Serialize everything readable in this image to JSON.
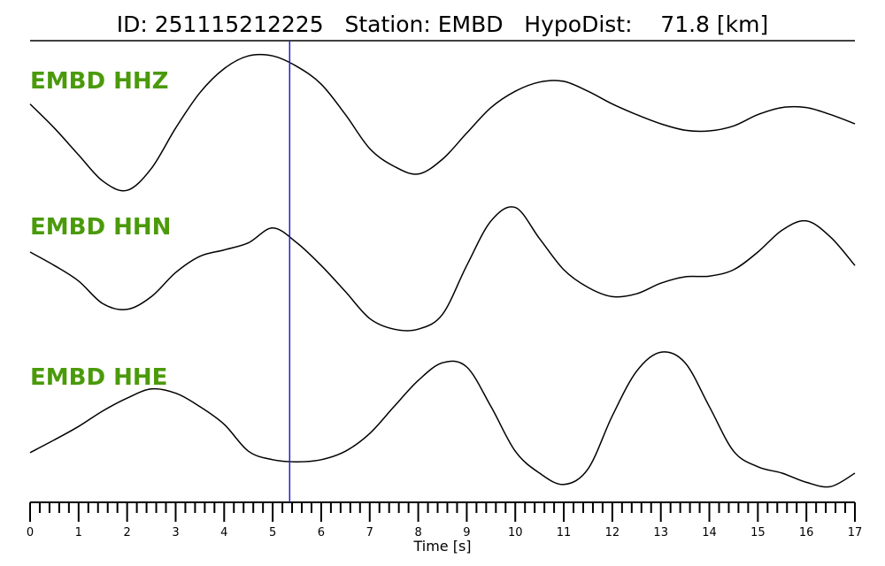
{
  "chart_data": {
    "type": "line",
    "title": "ID: 251115212225   Station: EMBD   HypoDist:    71.8 [km]",
    "xlabel": "Time [s]",
    "x": [
      0,
      0.5,
      1,
      1.5,
      2,
      2.5,
      3,
      3.5,
      4,
      4.5,
      5,
      5.5,
      6,
      6.5,
      7,
      7.5,
      8,
      8.5,
      9,
      9.5,
      10,
      10.5,
      11,
      11.5,
      12,
      12.5,
      13,
      13.5,
      14,
      14.5,
      15,
      15.5,
      16,
      16.5,
      17
    ],
    "xlim": [
      0,
      17
    ],
    "xticks": [
      0,
      1,
      2,
      3,
      4,
      5,
      6,
      7,
      8,
      9,
      10,
      11,
      12,
      13,
      14,
      15,
      16,
      17
    ],
    "xticks_minor": [
      0.2,
      0.4,
      0.6,
      0.8,
      1.2,
      1.4,
      1.6,
      1.8,
      2.2,
      2.4,
      2.6,
      2.8,
      3.2,
      3.4,
      3.6,
      3.8,
      4.2,
      4.4,
      4.6,
      4.8,
      5.2,
      5.4,
      5.6,
      5.8,
      6.2,
      6.4,
      6.6,
      6.8,
      7.2,
      7.4,
      7.6,
      7.8,
      8.2,
      8.4,
      8.6,
      8.8,
      9.2,
      9.4,
      9.6,
      9.8,
      10.2,
      10.4,
      10.6,
      10.8,
      11.2,
      11.4,
      11.6,
      11.8,
      12.2,
      12.4,
      12.6,
      12.8,
      13.2,
      13.4,
      13.6,
      13.8,
      14.2,
      14.4,
      14.6,
      14.8,
      15.2,
      15.4,
      15.6,
      15.8,
      16.2,
      16.4,
      16.6,
      16.8
    ],
    "marker": {
      "x": 5.35,
      "color": "#2020c8"
    },
    "label_color": "#4a9a0a",
    "series": [
      {
        "name": "EMBD HHZ",
        "color": "#000000",
        "ylim": [
          -1,
          1
        ],
        "values": [
          0.28,
          -0.06,
          -0.44,
          -0.81,
          -0.94,
          -0.63,
          -0.06,
          0.44,
          0.78,
          0.96,
          0.96,
          0.81,
          0.56,
          0.13,
          -0.35,
          -0.6,
          -0.71,
          -0.5,
          -0.13,
          0.23,
          0.46,
          0.59,
          0.6,
          0.46,
          0.28,
          0.13,
          0,
          -0.09,
          -0.1,
          -0.03,
          0.13,
          0.23,
          0.23,
          0.13,
          0
        ]
      },
      {
        "name": "EMBD HHN",
        "color": "#000000",
        "ylim": [
          -1,
          1
        ],
        "values": [
          0.25,
          0.06,
          -0.16,
          -0.48,
          -0.56,
          -0.38,
          -0.04,
          0.19,
          0.28,
          0.38,
          0.59,
          0.38,
          0.06,
          -0.31,
          -0.69,
          -0.84,
          -0.84,
          -0.63,
          0.06,
          0.69,
          0.88,
          0.44,
          0,
          -0.25,
          -0.38,
          -0.34,
          -0.19,
          -0.1,
          -0.09,
          0,
          0.25,
          0.56,
          0.69,
          0.46,
          0.06
        ]
      },
      {
        "name": "EMBD HHE",
        "color": "#000000",
        "ylim": [
          -1,
          1
        ],
        "values": [
          -0.46,
          -0.28,
          -0.09,
          0.13,
          0.31,
          0.44,
          0.38,
          0.19,
          -0.06,
          -0.44,
          -0.56,
          -0.59,
          -0.56,
          -0.44,
          -0.19,
          0.19,
          0.56,
          0.81,
          0.75,
          0.19,
          -0.44,
          -0.75,
          -0.91,
          -0.69,
          0.06,
          0.69,
          0.96,
          0.81,
          0.19,
          -0.44,
          -0.66,
          -0.75,
          -0.88,
          -0.94,
          -0.75
        ]
      }
    ]
  }
}
